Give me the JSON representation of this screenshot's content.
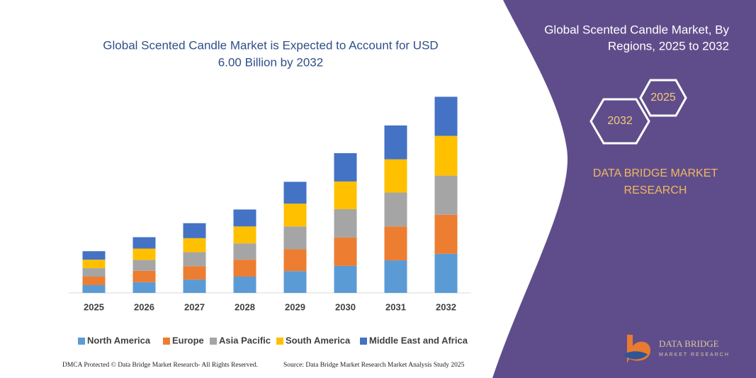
{
  "chart_data": {
    "type": "stacked-bar",
    "title": [
      "Global Scented Candle Market is Expected to Account for USD",
      "6.00 Billion by 2032"
    ],
    "categories": [
      "2025",
      "2026",
      "2027",
      "2028",
      "2029",
      "2030",
      "2031",
      "2032"
    ],
    "series": [
      {
        "name": "North America",
        "color": "#5b9bd5",
        "values": [
          0.24,
          0.33,
          0.41,
          0.5,
          0.67,
          0.83,
          1.0,
          1.2
        ]
      },
      {
        "name": "Europe",
        "color": "#ed7d31",
        "values": [
          0.26,
          0.35,
          0.41,
          0.52,
          0.67,
          0.87,
          1.04,
          1.2
        ]
      },
      {
        "name": "Asia Pacific",
        "color": "#a5a5a5",
        "values": [
          0.26,
          0.33,
          0.43,
          0.5,
          0.7,
          0.87,
          1.04,
          1.2
        ]
      },
      {
        "name": "South America",
        "color": "#ffc000",
        "values": [
          0.26,
          0.35,
          0.43,
          0.52,
          0.7,
          0.85,
          1.02,
          1.22
        ]
      },
      {
        "name": "Middle East and Africa",
        "color": "#4472c4",
        "values": [
          0.26,
          0.35,
          0.46,
          0.52,
          0.67,
          0.87,
          1.04,
          1.2
        ]
      }
    ],
    "ylim": [
      0,
      6.4
    ]
  },
  "panel": {
    "title": [
      "Global Scented Candle Market, By",
      "Regions, 2025 to 2032"
    ],
    "hex_labels": [
      "2025",
      "2032"
    ],
    "brand": [
      "DATA BRIDGE MARKET",
      "RESEARCH"
    ],
    "logo": [
      "DATA BRIDGE",
      "MARKET RESEARCH"
    ]
  },
  "footer": {
    "left": "DMCA Protected © Data Bridge Market Research- All Rights Reserved.",
    "right": "Source: Data Bridge Market Research Market Analysis Study 2025"
  }
}
